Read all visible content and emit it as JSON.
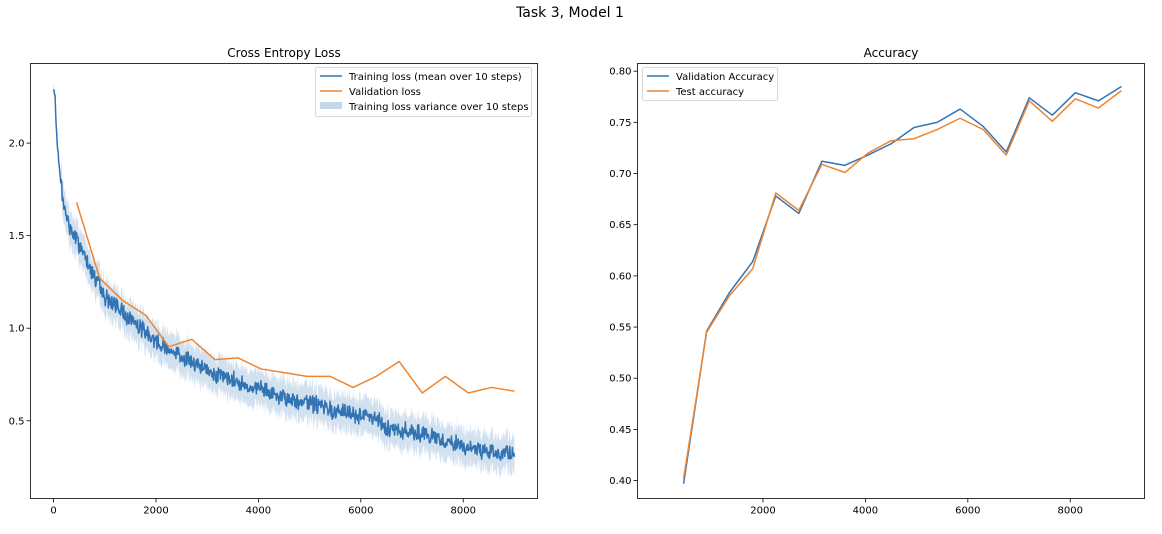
{
  "figure": {
    "suptitle": "Task 3, Model 1"
  },
  "colors": {
    "blue": "#3274b3",
    "orange": "#ee8531",
    "band": "#c3d7ea"
  },
  "chart_data": [
    {
      "type": "line",
      "title": "Cross Entropy Loss",
      "xlabel": "",
      "ylabel": "",
      "xlim": [
        -450,
        9450
      ],
      "ylim": [
        0.08,
        2.43
      ],
      "xticks": [
        0,
        2000,
        4000,
        6000,
        8000
      ],
      "yticks": [
        0.5,
        1.0,
        1.5,
        2.0
      ],
      "ytick_format": 1,
      "legend": {
        "placement": "top-right",
        "entries": [
          "Training loss (mean over 10 steps)",
          "Validation loss",
          "Training loss variance over 10 steps"
        ]
      },
      "training_loss_trend": {
        "x": [
          0,
          30,
          60,
          100,
          150,
          200,
          300,
          400,
          600,
          800,
          1000,
          1300,
          1600,
          2000,
          2500,
          3000,
          3500,
          4000,
          4500,
          5000,
          5500,
          6000,
          6300,
          6500,
          7000,
          7500,
          8000,
          8500,
          9000
        ],
        "y": [
          2.29,
          2.24,
          2.05,
          1.9,
          1.78,
          1.65,
          1.56,
          1.5,
          1.4,
          1.28,
          1.17,
          1.1,
          1.03,
          0.93,
          0.85,
          0.77,
          0.72,
          0.67,
          0.62,
          0.6,
          0.55,
          0.53,
          0.52,
          0.46,
          0.44,
          0.4,
          0.36,
          0.33,
          0.32
        ]
      },
      "series": [
        {
          "name": "Validation loss",
          "x": [
            450,
            900,
            1350,
            1800,
            2250,
            2700,
            3150,
            3600,
            4050,
            4500,
            4950,
            5400,
            5850,
            6300,
            6750,
            7200,
            7650,
            8100,
            8550,
            9000
          ],
          "y": [
            1.68,
            1.27,
            1.15,
            1.07,
            0.9,
            0.94,
            0.83,
            0.84,
            0.78,
            0.76,
            0.74,
            0.74,
            0.68,
            0.74,
            0.82,
            0.65,
            0.74,
            0.65,
            0.68,
            0.66
          ]
        }
      ]
    },
    {
      "type": "line",
      "title": "Accuracy",
      "xlabel": "",
      "ylabel": "",
      "xlim": [
        -450,
        9450
      ],
      "ylim": [
        0.3825,
        0.8075
      ],
      "xticks": [
        2000,
        4000,
        6000,
        8000
      ],
      "yticks": [
        0.4,
        0.45,
        0.5,
        0.55,
        0.6,
        0.65,
        0.7,
        0.75,
        0.8
      ],
      "ytick_format": 2,
      "legend": {
        "placement": "top-left",
        "entries": [
          "Validation Accuracy",
          "Test accuracy"
        ]
      },
      "series": [
        {
          "name": "Validation Accuracy",
          "x": [
            450,
            900,
            1350,
            1800,
            2250,
            2700,
            3150,
            3600,
            4050,
            4500,
            4950,
            5400,
            5850,
            6300,
            6750,
            7200,
            7650,
            8100,
            8550,
            9000
          ],
          "y": [
            0.397,
            0.546,
            0.584,
            0.614,
            0.678,
            0.661,
            0.712,
            0.708,
            0.718,
            0.729,
            0.745,
            0.75,
            0.763,
            0.746,
            0.721,
            0.774,
            0.757,
            0.779,
            0.771,
            0.785
          ]
        },
        {
          "name": "Test accuracy",
          "x": [
            450,
            900,
            1350,
            1800,
            2250,
            2700,
            3150,
            3600,
            4050,
            4500,
            4950,
            5400,
            5850,
            6300,
            6750,
            7200,
            7650,
            8100,
            8550,
            9000
          ],
          "y": [
            0.402,
            0.545,
            0.581,
            0.607,
            0.681,
            0.664,
            0.709,
            0.701,
            0.72,
            0.732,
            0.734,
            0.743,
            0.754,
            0.743,
            0.718,
            0.771,
            0.751,
            0.773,
            0.764,
            0.781
          ]
        }
      ]
    }
  ]
}
